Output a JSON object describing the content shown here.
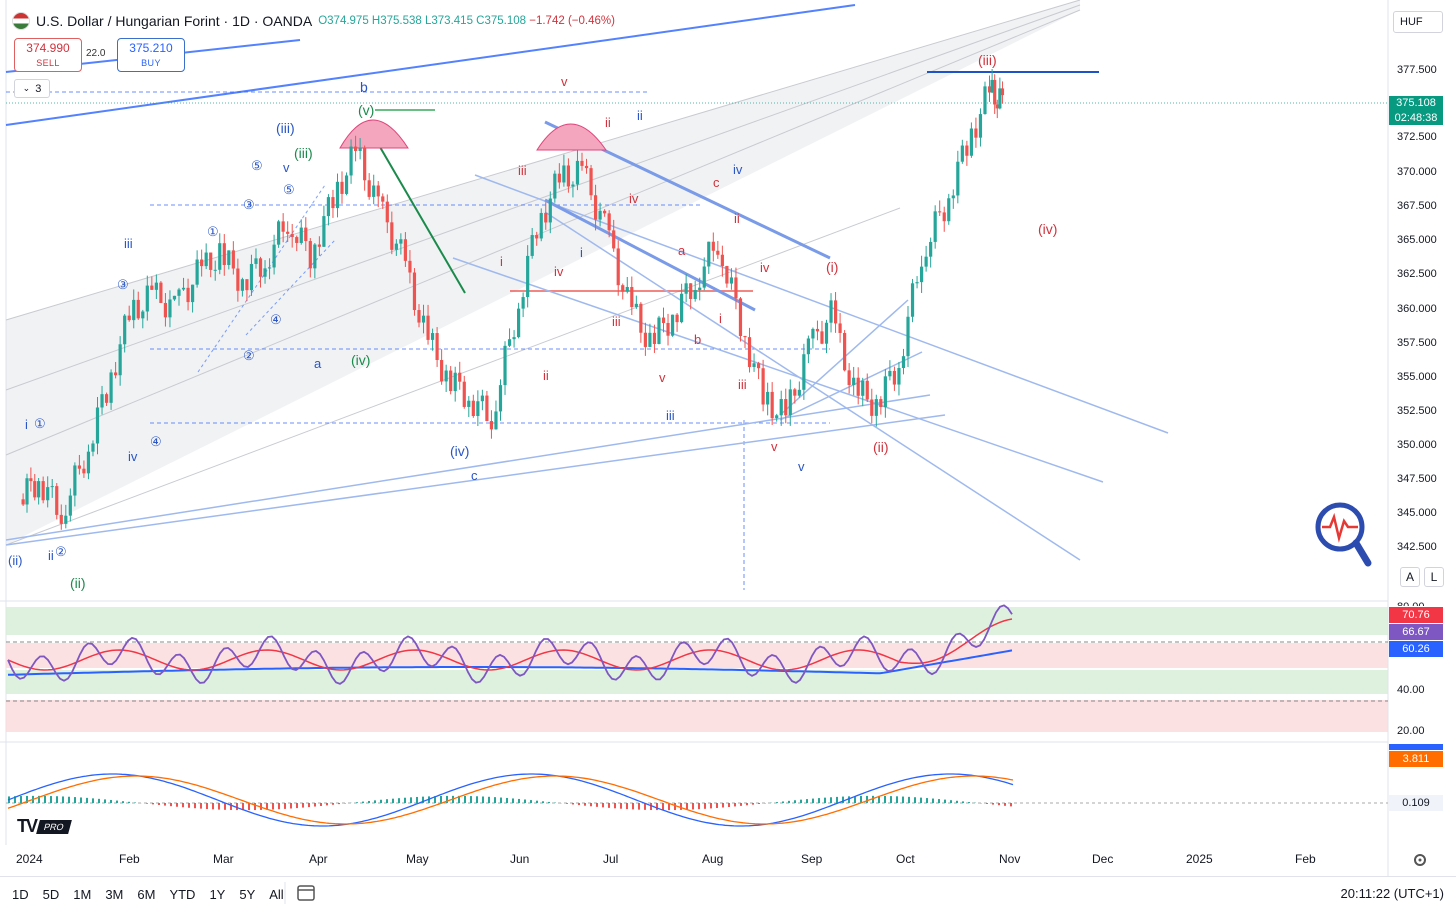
{
  "header": {
    "symbol_title": "U.S. Dollar / Hungarian Forint · 1D · OANDA",
    "open": "O374.975",
    "high": "H375.538",
    "low": "L373.415",
    "close": "C375.108",
    "change": "−1.742 (−0.46%)",
    "sell_price": "374.990",
    "sell_label": "SELL",
    "buy_price": "375.210",
    "buy_label": "BUY",
    "spread": "22.0",
    "layers_count": "3",
    "currency": "HUF"
  },
  "price_axis": {
    "labels": [
      "377.500",
      "375.000",
      "372.500",
      "370.000",
      "367.500",
      "365.000",
      "362.500",
      "360.000",
      "357.500",
      "355.000",
      "352.500",
      "350.000",
      "347.500",
      "345.000",
      "342.500"
    ],
    "last_price": "375.108",
    "countdown": "02:48:38"
  },
  "rsi_axis": {
    "labels": [
      "80.00",
      "40.00",
      "20.00"
    ],
    "tags": [
      "70.76",
      "66.67",
      "60.26"
    ]
  },
  "macd_axis": {
    "tags": [
      "3.811",
      "0.109"
    ]
  },
  "time_axis": [
    "2024",
    "Feb",
    "Mar",
    "Apr",
    "May",
    "Jun",
    "Jul",
    "Aug",
    "Sep",
    "Oct",
    "Nov",
    "Dec",
    "2025",
    "Feb"
  ],
  "wave_labels": {
    "blue": [
      "(ii)",
      "i",
      "ii",
      "(iii)",
      "iii",
      "iv",
      "v",
      "(iii)",
      "a",
      "b",
      "(iv)",
      "c",
      "ii",
      "iv",
      "v",
      "iii",
      "i",
      "(iv)"
    ],
    "green": [
      "(ii)",
      "(iii)",
      "(iv)",
      "(v)"
    ],
    "circled": [
      "①",
      "②",
      "③",
      "④",
      "⑤",
      "①",
      "②",
      "③",
      "④",
      "⑤"
    ],
    "red": [
      "(iii)",
      "(iv)",
      "(i)",
      "(ii)",
      "iii",
      "iv",
      "i",
      "ii",
      "iii",
      "iv",
      "v",
      "a",
      "b",
      "c",
      "i",
      "ii",
      "iii",
      "iv",
      "v",
      "i",
      "ii",
      "iii",
      "iv",
      "v"
    ]
  },
  "bottom_toolbar": {
    "timeframes": [
      "1D",
      "5D",
      "1M",
      "3M",
      "6M",
      "YTD",
      "1Y",
      "5Y",
      "All"
    ],
    "clock": "20:11:22 (UTC+1)"
  },
  "axis_buttons": {
    "auto": "A",
    "log": "L"
  },
  "branding": "PRO",
  "colors": {
    "up": "#26a69a",
    "down": "#ef5350",
    "rsi": "#7e57c2",
    "rsi_ma": "#f23645",
    "blue": "#2962ff",
    "accent": "#2962ff"
  },
  "chart_data": {
    "type": "line",
    "title": "U.S. Dollar / Hungarian Forint · 1D · OANDA",
    "x_range": [
      "2024-01",
      "2025-02"
    ],
    "ylim": [
      342.5,
      377.5
    ],
    "series": [
      {
        "name": "",
        "x": [
          "2024-01-02",
          "2024-01-08",
          "2024-01-15",
          "2024-01-22",
          "2024-01-29",
          "2024-02-05",
          "2024-02-12",
          "2024-02-19",
          "2024-02-26",
          "2024-03-04",
          "2024-03-11",
          "2024-03-18",
          "2024-03-25",
          "2024-04-01",
          "2024-04-08",
          "2024-04-15",
          "2024-04-22",
          "2024-04-29",
          "2024-05-06",
          "2024-05-13",
          "2024-05-20",
          "2024-05-27",
          "2024-06-03",
          "2024-06-10",
          "2024-06-17",
          "2024-06-24",
          "2024-07-01",
          "2024-07-08",
          "2024-07-15",
          "2024-07-22",
          "2024-07-29",
          "2024-08-05",
          "2024-08-12",
          "2024-08-19",
          "2024-08-26",
          "2024-09-02",
          "2024-09-09",
          "2024-09-16",
          "2024-09-23",
          "2024-09-30",
          "2024-10-07",
          "2024-10-14",
          "2024-10-21",
          "2024-10-28",
          "2024-11-01"
        ],
        "values": [
          346.0,
          347.5,
          345.0,
          349.0,
          354.0,
          359.5,
          361.0,
          360.0,
          362.5,
          364.0,
          362.0,
          363.5,
          366.5,
          364.0,
          368.0,
          371.5,
          367.5,
          364.0,
          358.5,
          355.0,
          353.5,
          352.0,
          359.0,
          366.0,
          369.5,
          370.0,
          366.0,
          360.5,
          357.5,
          359.5,
          362.0,
          365.0,
          359.0,
          353.5,
          352.0,
          357.0,
          359.5,
          354.0,
          353.0,
          356.0,
          364.0,
          367.5,
          372.0,
          376.0,
          375.1
        ]
      }
    ]
  }
}
